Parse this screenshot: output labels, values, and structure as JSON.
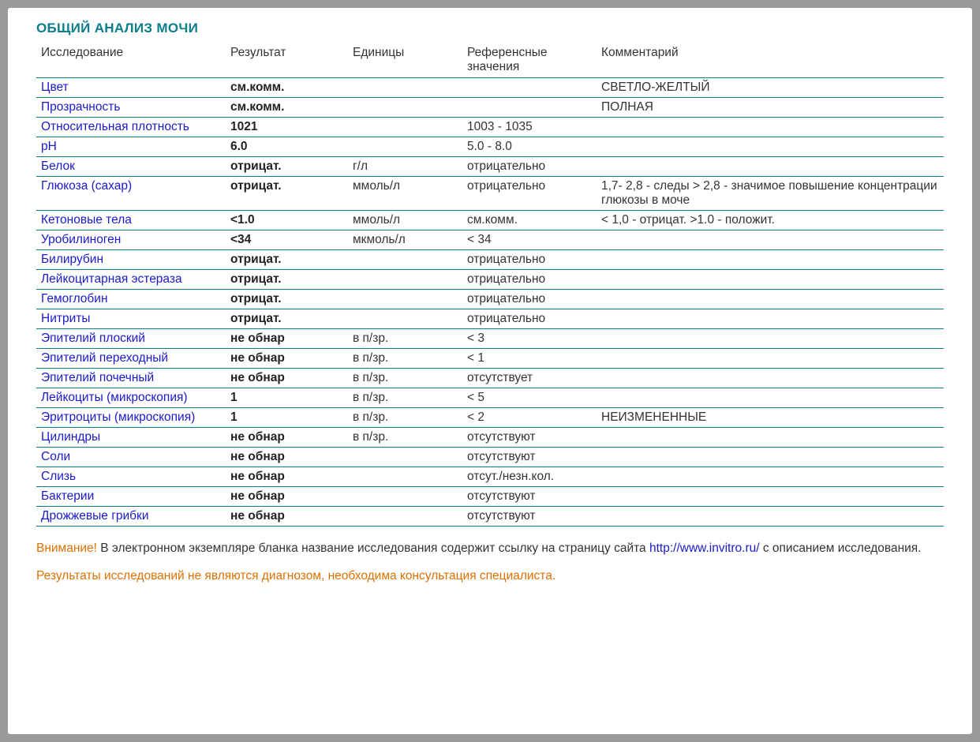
{
  "title": "ОБЩИЙ АНАЛИЗ МОЧИ",
  "headers": {
    "test": "Исследование",
    "result": "Результат",
    "units": "Единицы",
    "reference": "Референсные значения",
    "comment": "Комментарий"
  },
  "rows": [
    {
      "test": "Цвет",
      "result": "см.комм.",
      "units": "",
      "reference": "",
      "comment": "СВЕТЛО-ЖЕЛТЫЙ"
    },
    {
      "test": "Прозрачность",
      "result": "см.комм.",
      "units": "",
      "reference": "",
      "comment": "ПОЛНАЯ"
    },
    {
      "test": "Относительная плотность",
      "result": "1021",
      "units": "",
      "reference": "1003 - 1035",
      "comment": ""
    },
    {
      "test": "pH",
      "result": "6.0",
      "units": "",
      "reference": "5.0 - 8.0",
      "comment": ""
    },
    {
      "test": "Белок",
      "result": "отрицат.",
      "units": "г/л",
      "reference": "отрицательно",
      "comment": ""
    },
    {
      "test": "Глюкоза (сахар)",
      "result": "отрицат.",
      "units": "ммоль/л",
      "reference": "отрицательно",
      "comment": "1,7- 2,8 - следы > 2,8 - значимое повышение концентрации глюкозы в моче"
    },
    {
      "test": "Кетоновые тела",
      "result": "<1.0",
      "units": "ммоль/л",
      "reference": "см.комм.",
      "comment": "< 1,0 - отрицат. >1.0 - положит."
    },
    {
      "test": "Уробилиноген",
      "result": "<34",
      "units": "мкмоль/л",
      "reference": "< 34",
      "comment": ""
    },
    {
      "test": "Билирубин",
      "result": "отрицат.",
      "units": "",
      "reference": "отрицательно",
      "comment": ""
    },
    {
      "test": "Лейкоцитарная эстераза",
      "result": "отрицат.",
      "units": "",
      "reference": "отрицательно",
      "comment": ""
    },
    {
      "test": "Гемоглобин",
      "result": "отрицат.",
      "units": "",
      "reference": "отрицательно",
      "comment": ""
    },
    {
      "test": "Нитриты",
      "result": "отрицат.",
      "units": "",
      "reference": "отрицательно",
      "comment": ""
    },
    {
      "test": "Эпителий плоский",
      "result": "не обнар",
      "units": "в п/зр.",
      "reference": "< 3",
      "comment": ""
    },
    {
      "test": "Эпителий переходный",
      "result": "не обнар",
      "units": "в п/зр.",
      "reference": "< 1",
      "comment": ""
    },
    {
      "test": "Эпителий почечный",
      "result": "не обнар",
      "units": "в п/зр.",
      "reference": "отсутствует",
      "comment": ""
    },
    {
      "test": "Лейкоциты (микроскопия)",
      "result": "1",
      "units": "в п/зр.",
      "reference": "< 5",
      "comment": ""
    },
    {
      "test": "Эритроциты (микроскопия)",
      "result": "1",
      "units": "в п/зр.",
      "reference": "< 2",
      "comment": "НЕИЗМЕНЕННЫЕ"
    },
    {
      "test": "Цилиндры",
      "result": "не обнар",
      "units": "в п/зр.",
      "reference": "отсутствуют",
      "comment": ""
    },
    {
      "test": "Соли",
      "result": "не обнар",
      "units": "",
      "reference": "отсутствуют",
      "comment": ""
    },
    {
      "test": "Слизь",
      "result": "не обнар",
      "units": "",
      "reference": "отсут./незн.кол.",
      "comment": ""
    },
    {
      "test": "Бактерии",
      "result": "не обнар",
      "units": "",
      "reference": "отсутствуют",
      "comment": ""
    },
    {
      "test": "Дрожжевые грибки",
      "result": "не обнар",
      "units": "",
      "reference": "отсутствуют",
      "comment": ""
    }
  ],
  "footer": {
    "warn_label": "Внимание!",
    "line1_before": " В электронном экземпляре бланка название исследования содержит ссылку на страницу сайта ",
    "url": "http://www.invitro.ru/",
    "line1_after": " с описанием исследования.",
    "line2": "Результаты исследований не являются диагнозом, необходима консультация специалиста."
  },
  "colors": {
    "title": "#0a7e8c",
    "rule": "#0a7e8c",
    "test_link": "#1a1acc",
    "text": "#333333",
    "warn": "#e07000",
    "background": "#ffffff",
    "outer": "#9a9a9a"
  }
}
